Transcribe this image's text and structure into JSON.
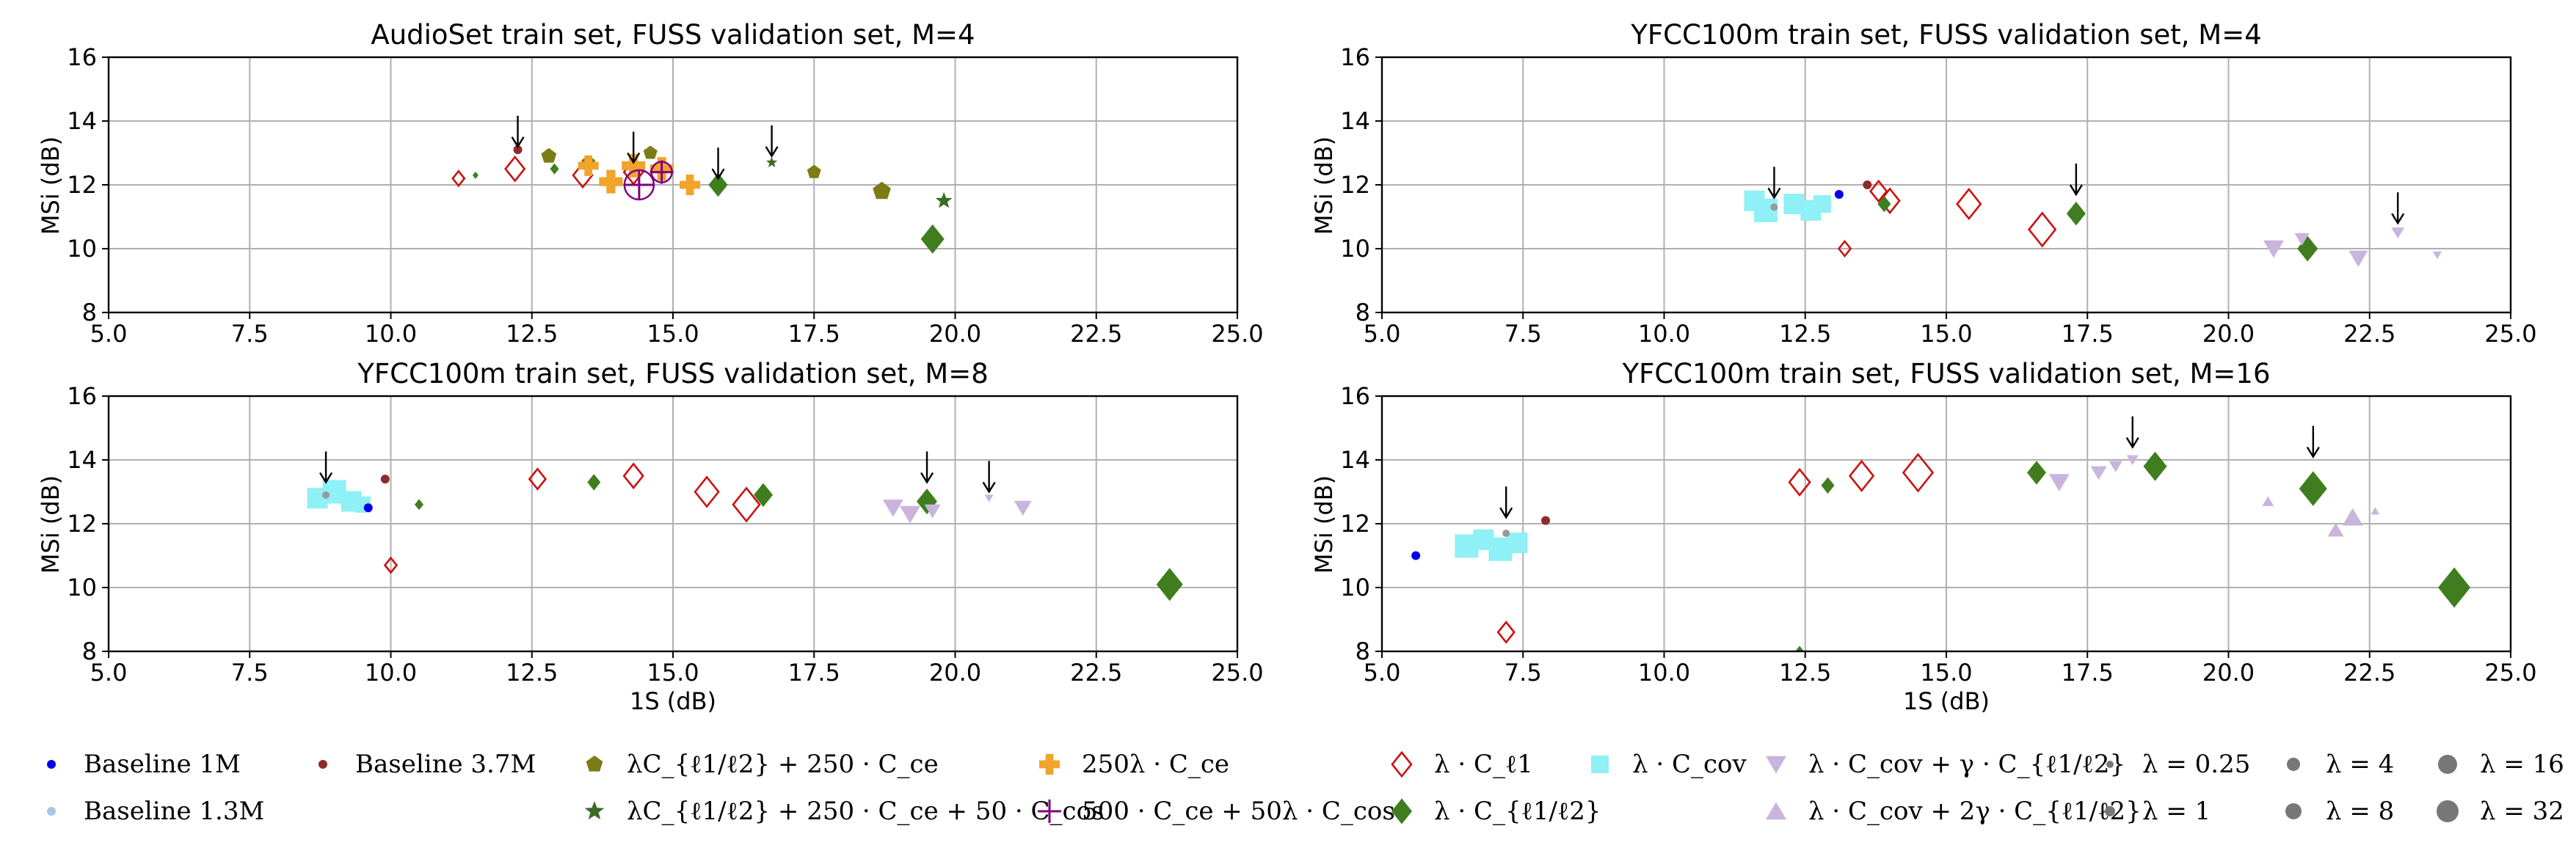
{
  "chart_data": [
    {
      "type": "scatter",
      "title": "AudioSet train set, FUSS validation set, M=4",
      "xlabel": "",
      "ylabel": "MSi (dB)",
      "xlim": [
        5.0,
        25.0
      ],
      "ylim": [
        8,
        16
      ],
      "xticks": [
        "5.0",
        "7.5",
        "10.0",
        "12.5",
        "15.0",
        "17.5",
        "20.0",
        "22.5",
        "25.0"
      ],
      "yticks": [
        "8",
        "10",
        "12",
        "14",
        "16"
      ],
      "arrows": [
        [
          12.25,
          13.2
        ],
        [
          14.3,
          12.7
        ],
        [
          15.8,
          12.2
        ],
        [
          16.75,
          12.9
        ]
      ],
      "points": [
        {
          "m": "diamond_open",
          "x": 11.2,
          "y": 12.2,
          "s": 8
        },
        {
          "m": "diamond_open",
          "x": 12.2,
          "y": 12.5,
          "s": 13
        },
        {
          "m": "diamond_open",
          "x": 13.4,
          "y": 12.3,
          "s": 13
        },
        {
          "m": "diamond_open",
          "x": 14.3,
          "y": 12.4,
          "s": 13
        },
        {
          "m": "diamond",
          "x": 11.5,
          "y": 12.3,
          "s": 4
        },
        {
          "m": "diamond",
          "x": 12.9,
          "y": 12.5,
          "s": 6
        },
        {
          "m": "diamond",
          "x": 15.8,
          "y": 12.0,
          "s": 13
        },
        {
          "m": "diamond",
          "x": 19.6,
          "y": 10.3,
          "s": 16
        },
        {
          "m": "circle",
          "x": 12.25,
          "y": 13.1,
          "s": 6,
          "c": "#8b2c2c"
        },
        {
          "m": "pentagon",
          "x": 12.8,
          "y": 12.9,
          "s": 11
        },
        {
          "m": "pentagon",
          "x": 13.5,
          "y": 12.7,
          "s": 10
        },
        {
          "m": "pentagon",
          "x": 14.6,
          "y": 13.0,
          "s": 10
        },
        {
          "m": "pentagon",
          "x": 17.5,
          "y": 12.4,
          "s": 10
        },
        {
          "m": "pentagon",
          "x": 18.7,
          "y": 11.8,
          "s": 13
        },
        {
          "m": "star",
          "x": 16.75,
          "y": 12.7,
          "s": 8
        },
        {
          "m": "star",
          "x": 19.8,
          "y": 11.5,
          "s": 12
        },
        {
          "m": "plus",
          "x": 13.5,
          "y": 12.6,
          "s": 14
        },
        {
          "m": "plus",
          "x": 13.9,
          "y": 12.1,
          "s": 16
        },
        {
          "m": "plus",
          "x": 14.3,
          "y": 12.6,
          "s": 16
        },
        {
          "m": "plus",
          "x": 14.8,
          "y": 12.5,
          "s": 16
        },
        {
          "m": "plus",
          "x": 15.3,
          "y": 12.0,
          "s": 14
        },
        {
          "m": "circle_open",
          "x": 14.4,
          "y": 12.0,
          "s": 20,
          "c": "#800080"
        },
        {
          "m": "circle_open",
          "x": 14.8,
          "y": 12.4,
          "s": 14,
          "c": "#800080"
        },
        {
          "m": "vplus",
          "x": 14.4,
          "y": 12.0,
          "s": 20
        },
        {
          "m": "vplus",
          "x": 14.8,
          "y": 12.4,
          "s": 16
        }
      ]
    },
    {
      "type": "scatter",
      "title": "YFCC100m train set, FUSS validation set, M=4",
      "xlabel": "",
      "ylabel": "MSi (dB)",
      "xlim": [
        5.0,
        25.0
      ],
      "ylim": [
        8,
        16
      ],
      "xticks": [
        "5.0",
        "7.5",
        "10.0",
        "12.5",
        "15.0",
        "17.5",
        "20.0",
        "22.5",
        "25.0"
      ],
      "yticks": [
        "8",
        "10",
        "12",
        "14",
        "16"
      ],
      "arrows": [
        [
          11.95,
          11.6
        ],
        [
          17.3,
          11.7
        ],
        [
          23.0,
          10.8
        ]
      ],
      "points": [
        {
          "m": "square",
          "x": 11.6,
          "y": 11.5,
          "s": 14
        },
        {
          "m": "square",
          "x": 11.8,
          "y": 11.2,
          "s": 16
        },
        {
          "m": "square",
          "x": 12.3,
          "y": 11.4,
          "s": 14
        },
        {
          "m": "square",
          "x": 12.6,
          "y": 11.2,
          "s": 14
        },
        {
          "m": "square",
          "x": 12.8,
          "y": 11.4,
          "s": 12
        },
        {
          "m": "circle",
          "x": 11.95,
          "y": 11.3,
          "s": 5,
          "c": "#999999"
        },
        {
          "m": "circle",
          "x": 13.1,
          "y": 11.7,
          "s": 6,
          "c": "#0000ee"
        },
        {
          "m": "circle",
          "x": 13.6,
          "y": 12.0,
          "s": 6,
          "c": "#8b2c2c"
        },
        {
          "m": "diamond_open",
          "x": 13.2,
          "y": 10.0,
          "s": 8
        },
        {
          "m": "diamond_open",
          "x": 13.8,
          "y": 11.8,
          "s": 11
        },
        {
          "m": "diamond_open",
          "x": 14.0,
          "y": 11.5,
          "s": 13
        },
        {
          "m": "diamond_open",
          "x": 15.4,
          "y": 11.4,
          "s": 16
        },
        {
          "m": "diamond_open",
          "x": 16.7,
          "y": 10.6,
          "s": 18
        },
        {
          "m": "diamond",
          "x": 13.9,
          "y": 11.4,
          "s": 9
        },
        {
          "m": "diamond",
          "x": 17.3,
          "y": 11.1,
          "s": 13
        },
        {
          "m": "diamond",
          "x": 21.4,
          "y": 10.0,
          "s": 14
        },
        {
          "m": "tri_down",
          "x": 20.8,
          "y": 10.0,
          "s": 14
        },
        {
          "m": "tri_down",
          "x": 21.3,
          "y": 10.3,
          "s": 10
        },
        {
          "m": "tri_down",
          "x": 22.3,
          "y": 9.7,
          "s": 13
        },
        {
          "m": "tri_down",
          "x": 23.0,
          "y": 10.5,
          "s": 9
        },
        {
          "m": "tri_down",
          "x": 23.7,
          "y": 9.8,
          "s": 6
        }
      ]
    },
    {
      "type": "scatter",
      "title": "YFCC100m train set, FUSS validation set, M=8",
      "xlabel": "1S (dB)",
      "ylabel": "MSi (dB)",
      "xlim": [
        5.0,
        25.0
      ],
      "ylim": [
        8,
        16
      ],
      "xticks": [
        "5.0",
        "7.5",
        "10.0",
        "12.5",
        "15.0",
        "17.5",
        "20.0",
        "22.5",
        "25.0"
      ],
      "yticks": [
        "8",
        "10",
        "12",
        "14",
        "16"
      ],
      "arrows": [
        [
          8.85,
          13.3
        ],
        [
          19.5,
          13.3
        ],
        [
          20.6,
          13.0
        ]
      ],
      "points": [
        {
          "m": "square",
          "x": 8.7,
          "y": 12.8,
          "s": 14
        },
        {
          "m": "square",
          "x": 9.0,
          "y": 13.0,
          "s": 16
        },
        {
          "m": "square",
          "x": 9.3,
          "y": 12.7,
          "s": 14
        },
        {
          "m": "square",
          "x": 9.5,
          "y": 12.6,
          "s": 11
        },
        {
          "m": "circle",
          "x": 8.85,
          "y": 12.9,
          "s": 5,
          "c": "#999999"
        },
        {
          "m": "circle",
          "x": 9.6,
          "y": 12.5,
          "s": 6,
          "c": "#0000ee"
        },
        {
          "m": "circle",
          "x": 9.9,
          "y": 13.4,
          "s": 6,
          "c": "#8b2c2c"
        },
        {
          "m": "diamond_open",
          "x": 10.0,
          "y": 10.7,
          "s": 8
        },
        {
          "m": "diamond_open",
          "x": 12.6,
          "y": 13.4,
          "s": 11
        },
        {
          "m": "diamond_open",
          "x": 14.3,
          "y": 13.5,
          "s": 13
        },
        {
          "m": "diamond_open",
          "x": 15.6,
          "y": 13.0,
          "s": 16
        },
        {
          "m": "diamond_open",
          "x": 16.3,
          "y": 12.6,
          "s": 18
        },
        {
          "m": "diamond",
          "x": 10.5,
          "y": 12.6,
          "s": 6
        },
        {
          "m": "diamond",
          "x": 13.6,
          "y": 13.3,
          "s": 9
        },
        {
          "m": "diamond",
          "x": 16.6,
          "y": 12.9,
          "s": 13
        },
        {
          "m": "diamond",
          "x": 19.5,
          "y": 12.7,
          "s": 14
        },
        {
          "m": "diamond",
          "x": 23.8,
          "y": 10.1,
          "s": 18
        },
        {
          "m": "tri_down",
          "x": 18.9,
          "y": 12.5,
          "s": 14
        },
        {
          "m": "tri_down",
          "x": 19.2,
          "y": 12.3,
          "s": 14
        },
        {
          "m": "tri_down",
          "x": 19.6,
          "y": 12.4,
          "s": 11
        },
        {
          "m": "tri_down",
          "x": 20.6,
          "y": 12.8,
          "s": 6
        },
        {
          "m": "tri_down",
          "x": 21.2,
          "y": 12.5,
          "s": 12
        }
      ]
    },
    {
      "type": "scatter",
      "title": "YFCC100m train set, FUSS validation set, M=16",
      "xlabel": "1S (dB)",
      "ylabel": "MSi (dB)",
      "xlim": [
        5.0,
        25.0
      ],
      "ylim": [
        8,
        16
      ],
      "xticks": [
        "5.0",
        "7.5",
        "10.0",
        "12.5",
        "15.0",
        "17.5",
        "20.0",
        "22.5",
        "25.0"
      ],
      "yticks": [
        "8",
        "10",
        "12",
        "14",
        "16"
      ],
      "arrows": [
        [
          7.2,
          12.2
        ],
        [
          18.3,
          14.4
        ],
        [
          21.5,
          14.1
        ]
      ],
      "points": [
        {
          "m": "square",
          "x": 6.5,
          "y": 11.3,
          "s": 16
        },
        {
          "m": "square",
          "x": 6.8,
          "y": 11.5,
          "s": 14
        },
        {
          "m": "square",
          "x": 7.1,
          "y": 11.2,
          "s": 16
        },
        {
          "m": "square",
          "x": 7.4,
          "y": 11.4,
          "s": 14
        },
        {
          "m": "circle",
          "x": 5.6,
          "y": 11.0,
          "s": 6,
          "c": "#0000ee"
        },
        {
          "m": "circle",
          "x": 7.2,
          "y": 11.7,
          "s": 5,
          "c": "#999999"
        },
        {
          "m": "circle",
          "x": 7.9,
          "y": 12.1,
          "s": 6,
          "c": "#8b2c2c"
        },
        {
          "m": "diamond_open",
          "x": 7.2,
          "y": 8.6,
          "s": 11
        },
        {
          "m": "diamond_open",
          "x": 12.4,
          "y": 13.3,
          "s": 14
        },
        {
          "m": "diamond_open",
          "x": 13.5,
          "y": 13.5,
          "s": 16
        },
        {
          "m": "diamond_open",
          "x": 14.5,
          "y": 13.6,
          "s": 20
        },
        {
          "m": "diamond",
          "x": 12.4,
          "y": 8.0,
          "s": 6
        },
        {
          "m": "diamond",
          "x": 12.9,
          "y": 13.2,
          "s": 9
        },
        {
          "m": "diamond",
          "x": 16.6,
          "y": 13.6,
          "s": 13
        },
        {
          "m": "diamond",
          "x": 18.7,
          "y": 13.8,
          "s": 16
        },
        {
          "m": "diamond",
          "x": 21.5,
          "y": 13.1,
          "s": 19
        },
        {
          "m": "diamond",
          "x": 24.0,
          "y": 10.0,
          "s": 22
        },
        {
          "m": "tri_down",
          "x": 17.0,
          "y": 13.3,
          "s": 14
        },
        {
          "m": "tri_down",
          "x": 17.7,
          "y": 13.6,
          "s": 11
        },
        {
          "m": "tri_down",
          "x": 18.0,
          "y": 13.8,
          "s": 9
        },
        {
          "m": "tri_down",
          "x": 18.3,
          "y": 14.0,
          "s": 8
        },
        {
          "m": "tri_up",
          "x": 20.7,
          "y": 12.7,
          "s": 8
        },
        {
          "m": "tri_up",
          "x": 21.9,
          "y": 11.8,
          "s": 11
        },
        {
          "m": "tri_up",
          "x": 22.2,
          "y": 12.2,
          "s": 14
        },
        {
          "m": "tri_up",
          "x": 22.6,
          "y": 12.4,
          "s": 6
        }
      ]
    }
  ],
  "legend": [
    {
      "marker": "circle",
      "color": "#0000ee",
      "label": "Baseline   1M"
    },
    {
      "marker": "circle",
      "color": "#a5c8e8",
      "label": "Baseline 1.3M"
    },
    {
      "marker": "circle",
      "color": "#8b2c2c",
      "label": "Baseline 3.7M"
    },
    {
      "marker": "pentagon",
      "color": "#7c7c16",
      "label": "λC_{ℓ1/ℓ2} + 250 · C_ce"
    },
    {
      "marker": "star",
      "color": "#3d6b25",
      "label": "λC_{ℓ1/ℓ2} + 250 · C_ce + 50 · C_cos"
    },
    {
      "marker": "plus",
      "color": "#f2a329",
      "label": "250λ · C_ce"
    },
    {
      "marker": "vplus",
      "color": "#800080",
      "label": "500 · C_ce + 50λ · C_cos"
    },
    {
      "marker": "diamond_open",
      "color": "#cc1111",
      "label": "λ · C_ℓ1"
    },
    {
      "marker": "diamond",
      "color": "#3f7d1e",
      "label": "λ · C_{ℓ1/ℓ2}"
    },
    {
      "marker": "square",
      "color": "#8ff0f5",
      "label": "λ · C_cov"
    },
    {
      "marker": "tri_down",
      "color": "#c9b5dc",
      "label": "λ · C_cov + γ · C_{ℓ1/ℓ2}"
    },
    {
      "marker": "tri_up",
      "color": "#c9b5dc",
      "label": "λ · C_cov + 2γ · C_{ℓ1/ℓ2}"
    },
    {
      "marker": "circle",
      "color": "#777777",
      "label": "λ = 0.25"
    },
    {
      "marker": "circle",
      "color": "#777777",
      "label": "λ = 1"
    },
    {
      "marker": "circle",
      "color": "#777777",
      "label": "λ = 4"
    },
    {
      "marker": "circle",
      "color": "#777777",
      "label": "λ = 8"
    },
    {
      "marker": "circle",
      "color": "#777777",
      "label": "λ = 16"
    },
    {
      "marker": "circle",
      "color": "#777777",
      "label": "λ = 32"
    }
  ],
  "colors": {
    "pentagon": "#7c7c16",
    "star": "#3d6b25",
    "plus": "#f2a329",
    "vplus": "#800080",
    "diamond_open": "#cc1111",
    "diamond": "#3f7d1e",
    "square": "#8ff0f5",
    "tri_down": "#c9b5dc",
    "tri_up": "#c9b5dc",
    "grid": "#b0b0b0"
  }
}
